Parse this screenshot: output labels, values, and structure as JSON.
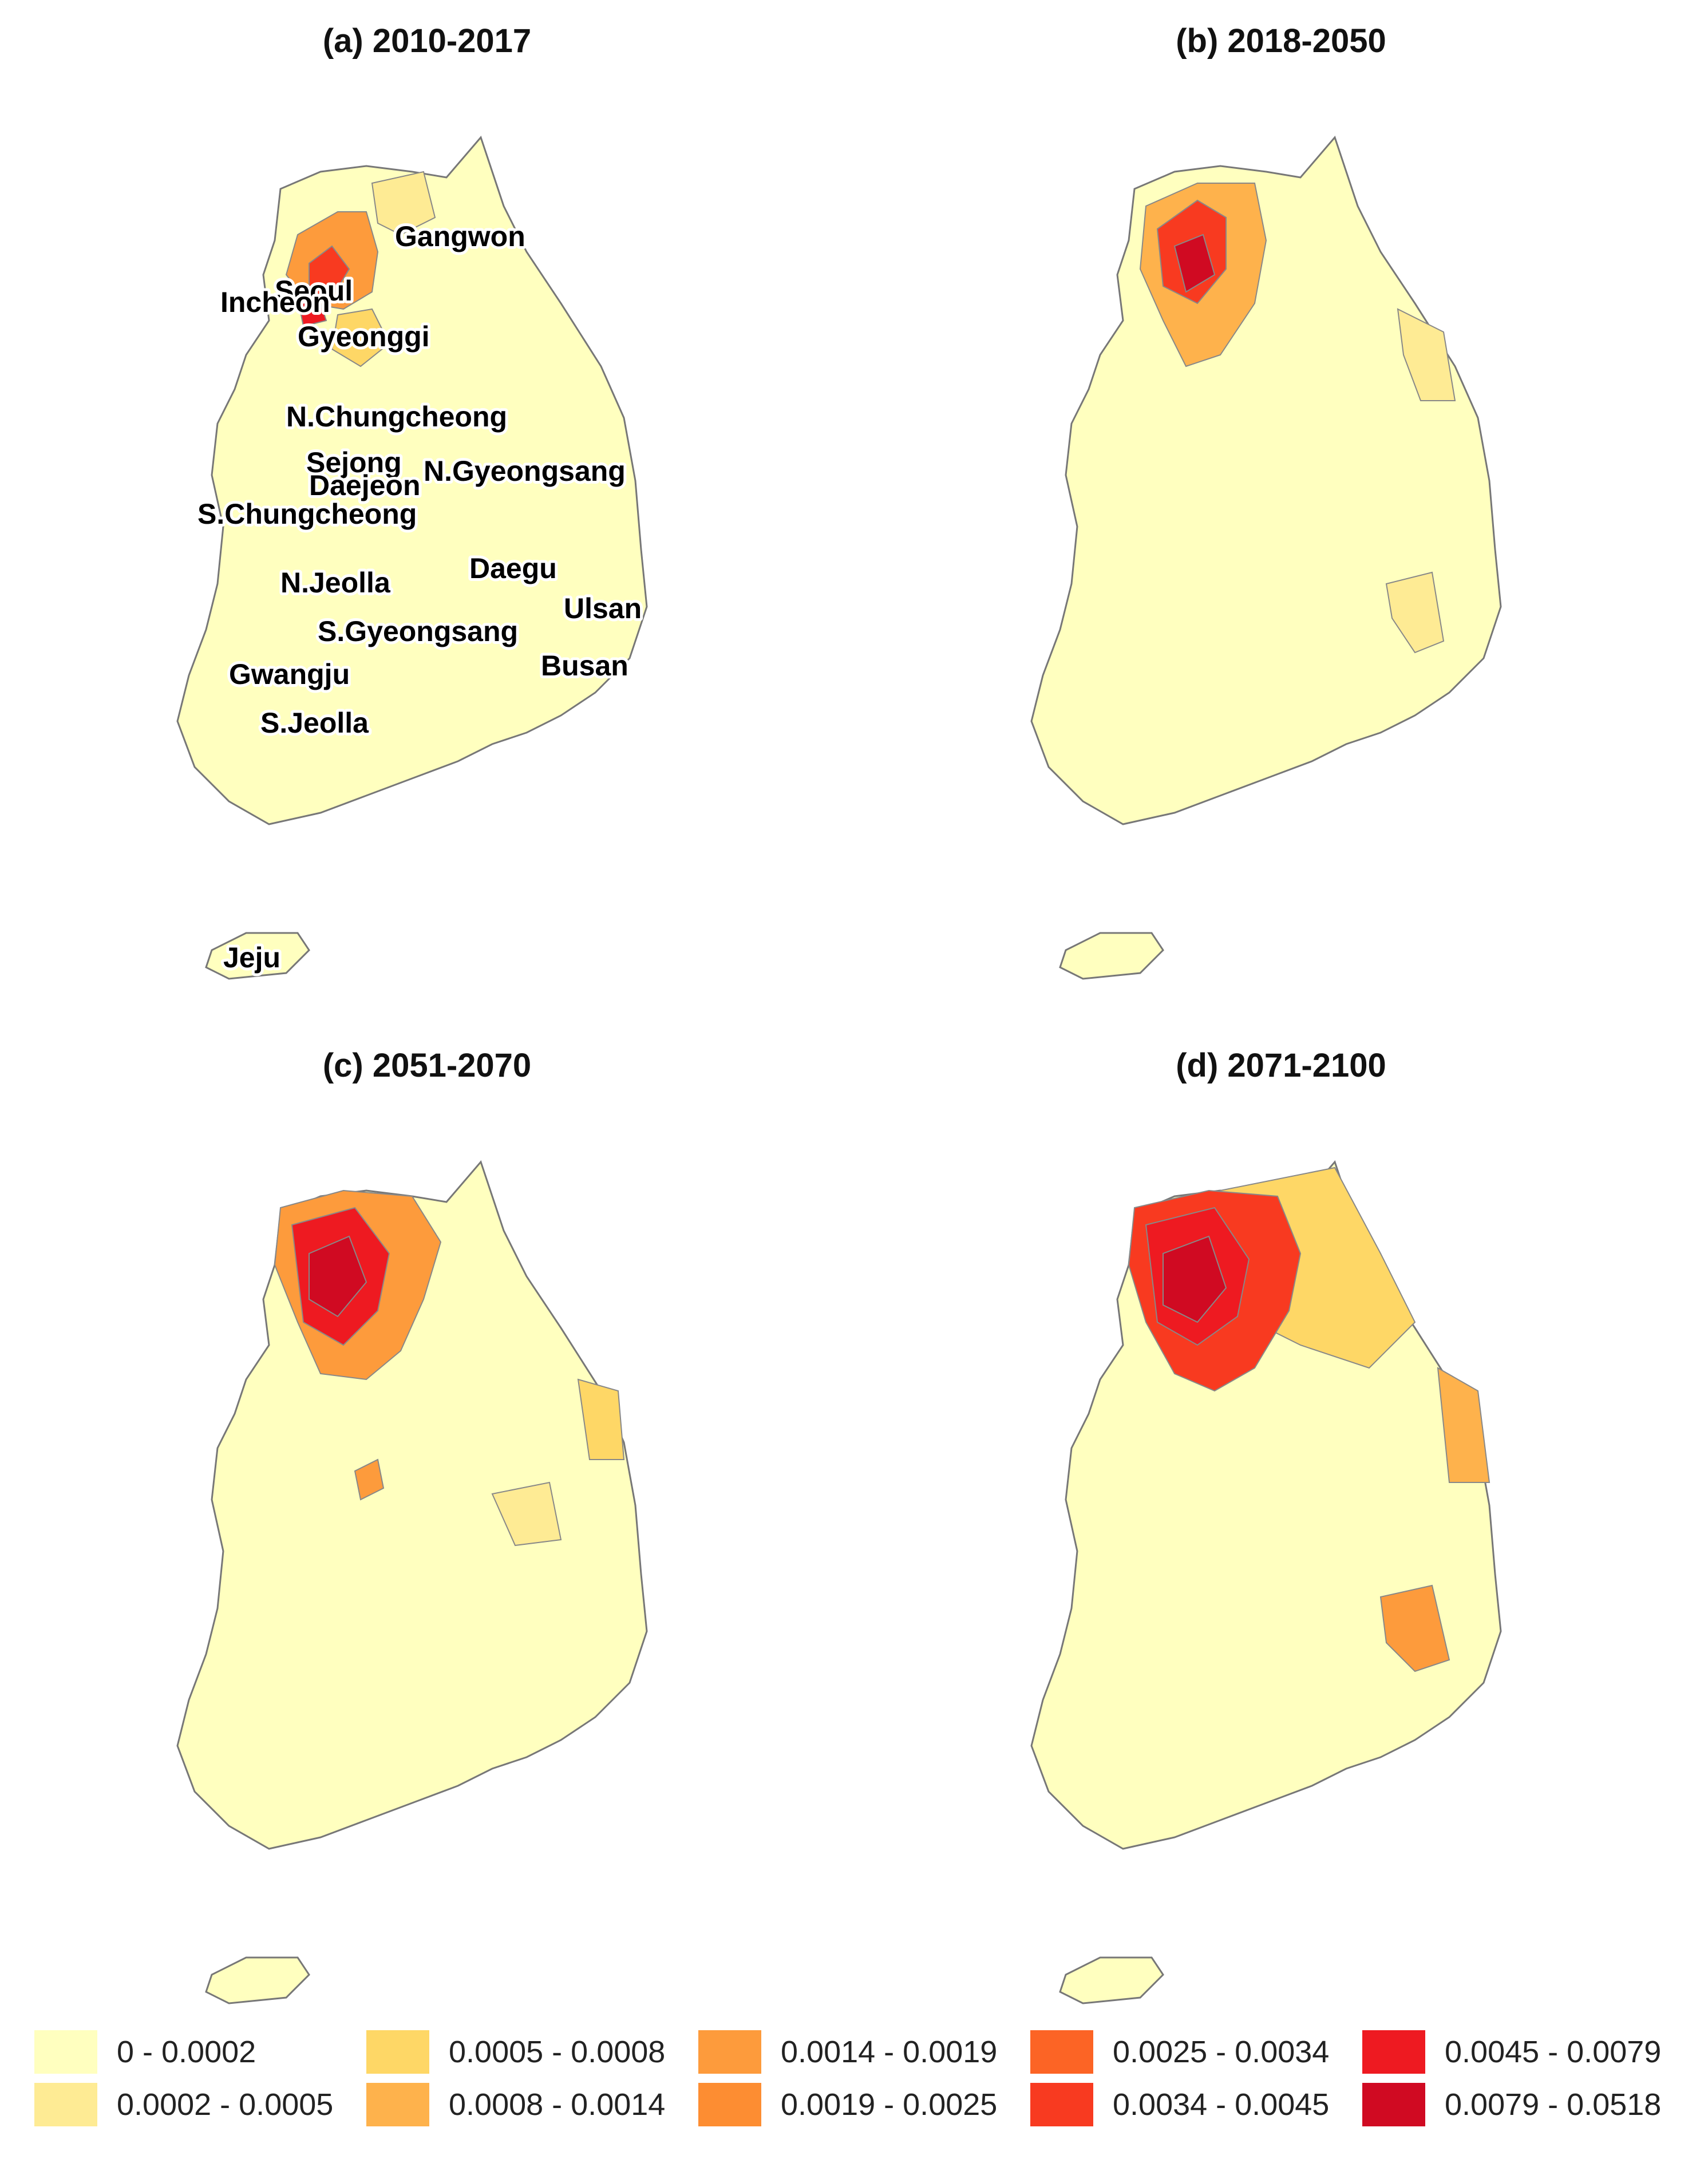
{
  "panels": [
    {
      "title": "(a) 2010-2017"
    },
    {
      "title": "(b) 2018-2050"
    },
    {
      "title": "(c) 2051-2070"
    },
    {
      "title": "(d) 2071-2100"
    }
  ],
  "region_labels": [
    "Gangwon",
    "Seoul",
    "Incheon",
    "Gyeonggi",
    "N.Chungcheong",
    "Sejong",
    "N.Gyeongsang",
    "Daejeon",
    "S.Chungcheong",
    "Daegu",
    "N.Jeolla",
    "Ulsan",
    "S.Gyeongsang",
    "Busan",
    "Gwangju",
    "S.Jeolla",
    "Jeju"
  ],
  "legend": [
    {
      "label": "0 - 0.0002",
      "color": "#FFFFBF"
    },
    {
      "label": "0.0002 - 0.0005",
      "color": "#FEEB94"
    },
    {
      "label": "0.0005 - 0.0008",
      "color": "#FED766"
    },
    {
      "label": "0.0008 - 0.0014",
      "color": "#FEB24C"
    },
    {
      "label": "0.0014 - 0.0019",
      "color": "#FD9B3C"
    },
    {
      "label": "0.0019 - 0.0025",
      "color": "#FD8D32"
    },
    {
      "label": "0.0025 - 0.0034",
      "color": "#FC6425"
    },
    {
      "label": "0.0034 - 0.0045",
      "color": "#F83A20"
    },
    {
      "label": "0.0045 - 0.0079",
      "color": "#EE1A21"
    },
    {
      "label": "0.0079 - 0.0518",
      "color": "#D00A22"
    }
  ]
}
